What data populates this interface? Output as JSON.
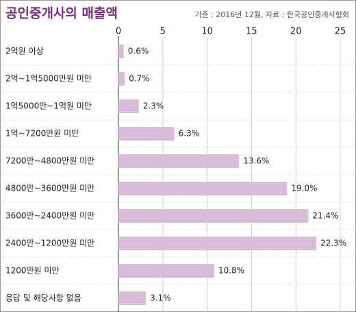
{
  "chart_data": {
    "type": "bar",
    "orientation": "horizontal",
    "title": "공인중개사의 매출액",
    "subtitle": "기준 : 2016년 12월, 자료 : 한국공인중개사협회",
    "categories": [
      "2억원 이상",
      "2억~1억5000만원 미만",
      "1억5000만~1억원 미만",
      "1억~7200만원 미만",
      "7200만~4800만원 미만",
      "4800만~3600만원 미만",
      "3600만~2400만원 미만",
      "2400만~1200만원 미만",
      "1200만원 미만",
      "응답 및 해당사항 없음"
    ],
    "values": [
      0.6,
      0.7,
      2.3,
      6.3,
      13.6,
      19.0,
      21.4,
      22.3,
      10.8,
      3.1
    ],
    "value_labels": [
      "0.6%",
      "0.7%",
      "2.3%",
      "6.3%",
      "13.6%",
      "19.0%",
      "21.4%",
      "22.3%",
      "10.8%",
      "3.1%"
    ],
    "color": "#d9bcd8",
    "xlim": [
      0,
      25
    ],
    "xticks": [
      0,
      5,
      10,
      15,
      20,
      25
    ],
    "grid": true
  }
}
